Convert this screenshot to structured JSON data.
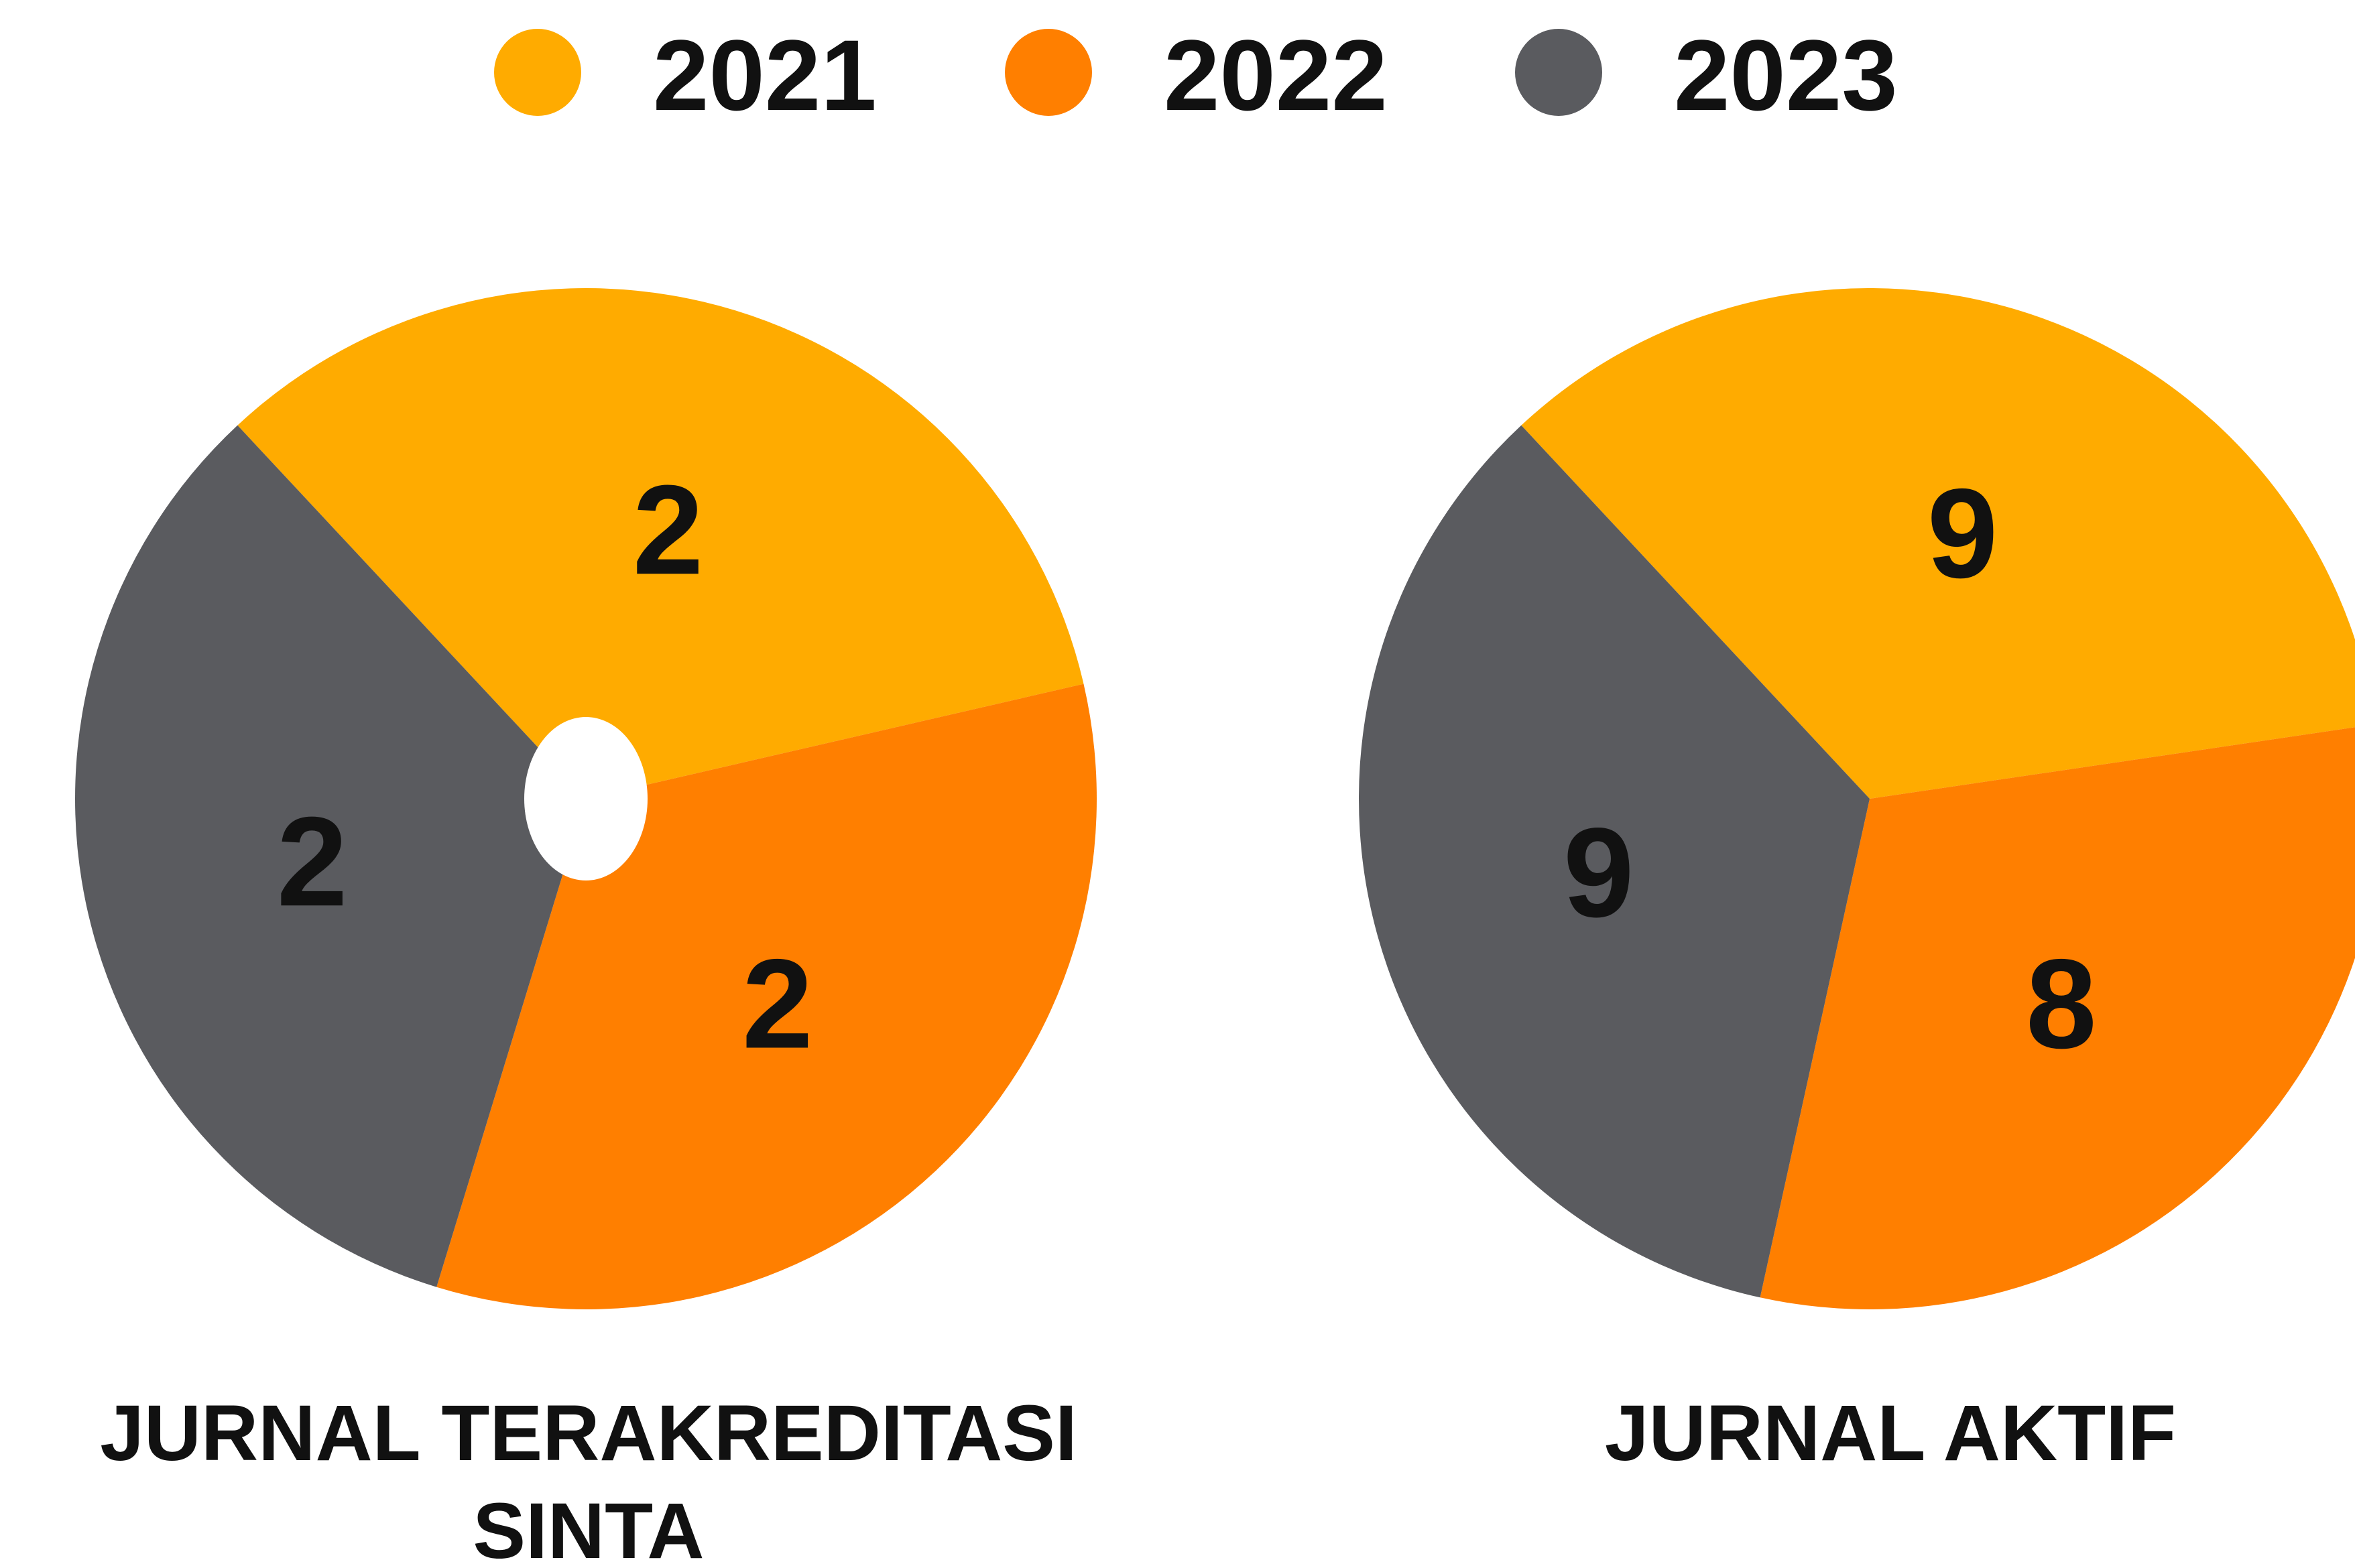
{
  "chart_data": [
    {
      "type": "pie",
      "title": "JURNAL TERAKREDITASI SINTA",
      "categories": [
        "2021",
        "2022",
        "2023"
      ],
      "values": [
        2,
        2,
        2
      ],
      "colors": [
        "#FFAB00",
        "#FF7F00",
        "#5A5B5F"
      ]
    },
    {
      "type": "pie",
      "title": "JURNAL AKTIF",
      "categories": [
        "2021",
        "2022",
        "2023"
      ],
      "values": [
        9,
        8,
        9
      ],
      "colors": [
        "#FFAB00",
        "#FF7F00",
        "#5A5B5F"
      ]
    }
  ]
}
